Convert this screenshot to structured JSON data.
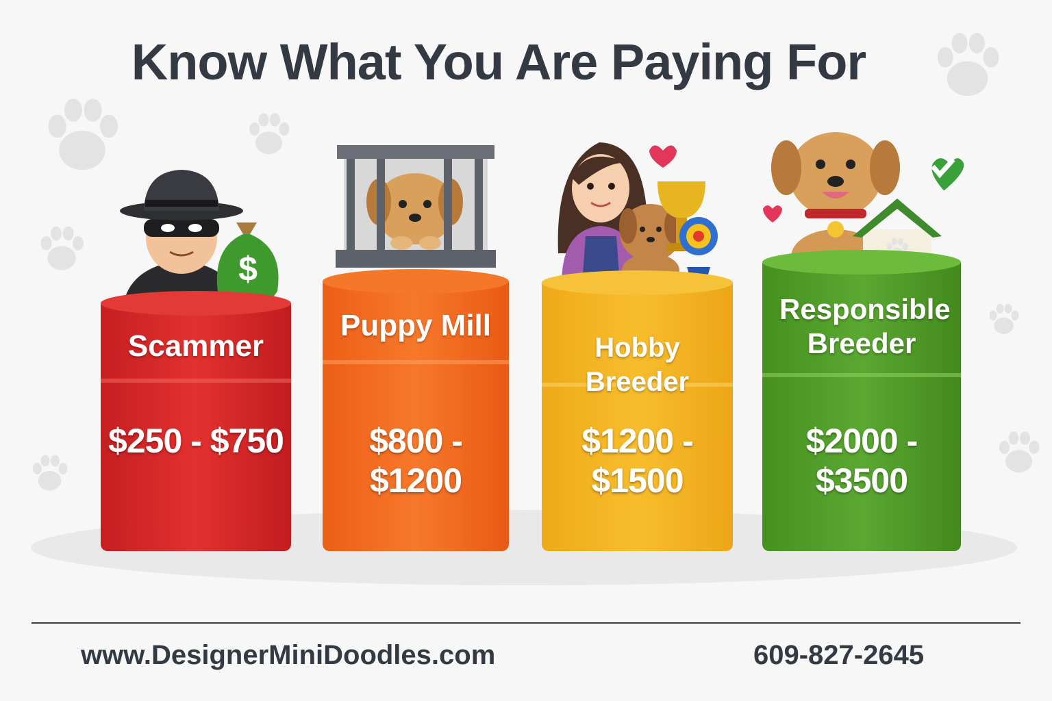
{
  "title": "Know What You Are Paying For",
  "tiers": [
    {
      "label": "Scammer",
      "price": "$250 - $750",
      "color": "#d9262a",
      "icon": "scammer-with-money-bag-icon"
    },
    {
      "label": "Puppy Mill",
      "price": "$800 - $1200",
      "color": "#f26a1b",
      "icon": "caged-puppy-icon"
    },
    {
      "label": "Hobby Breeder",
      "price": "$1200 - $1500",
      "color": "#f2b01e",
      "icon": "woman-with-puppy-and-trophy-icon"
    },
    {
      "label": "Responsible Breeder",
      "price": "$2000 - $3500",
      "color": "#4e9a2a",
      "icon": "happy-dog-with-home-icon"
    }
  ],
  "footer": {
    "website": "www.DesignerMiniDoodles.com",
    "phone": "609-827-2645"
  }
}
